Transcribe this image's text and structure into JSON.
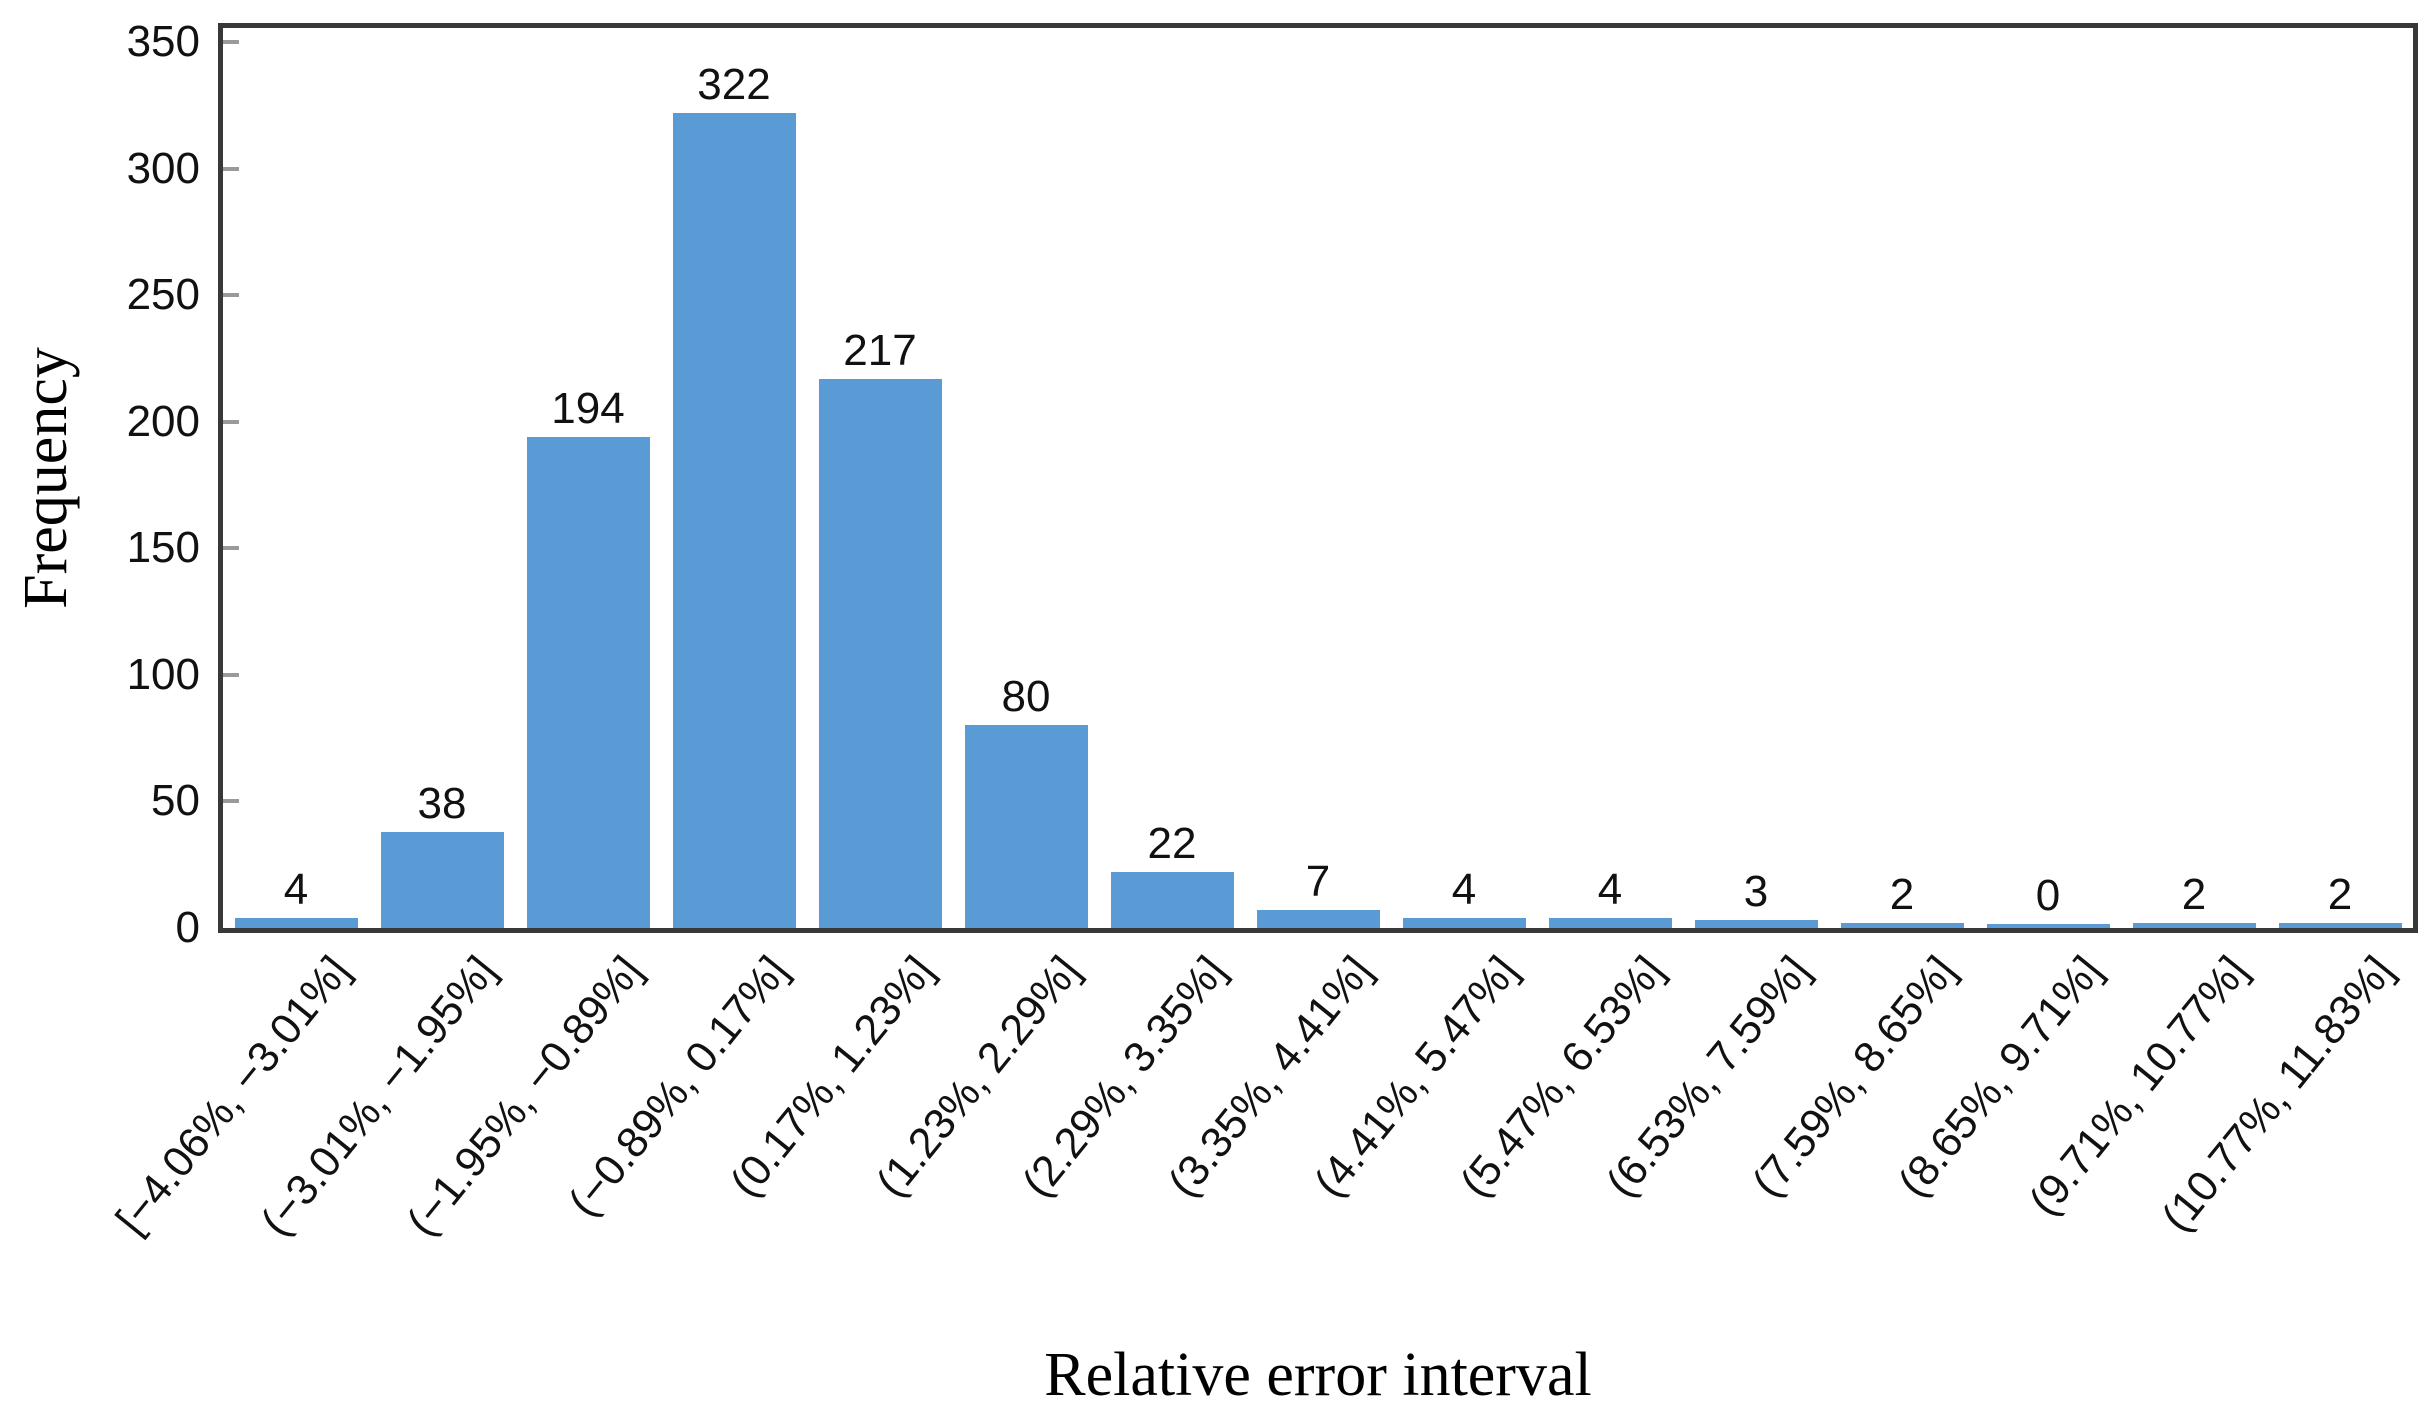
{
  "figure": {
    "background": "#ffffff"
  },
  "chart_data": {
    "type": "bar",
    "title": "",
    "xlabel": "Relative error interval",
    "ylabel": "Frequency",
    "categories": [
      "[−4.06%, −3.01%]",
      "(−3.01%, −1.95%]",
      "(−1.95%, −0.89%]",
      "(−0.89%, 0.17%]",
      "(0.17%, 1.23%]",
      "(1.23%, 2.29%]",
      "(2.29%, 3.35%]",
      "(3.35%, 4.41%]",
      "(4.41%, 5.47%]",
      "(5.47%, 6.53%]",
      "(6.53%, 7.59%]",
      "(7.59%, 8.65%]",
      "(8.65%, 9.71%]",
      "(9.71%, 10.77%]",
      "(10.77%, 11.83%]"
    ],
    "values": [
      4,
      38,
      194,
      322,
      217,
      80,
      22,
      7,
      4,
      4,
      3,
      2,
      0,
      2,
      2
    ],
    "yticks": [
      0,
      50,
      100,
      150,
      200,
      250,
      300,
      350
    ],
    "ylim": [
      0,
      356
    ],
    "grid": "off",
    "legend": "none",
    "bar_color": "#5B9BD5",
    "axis_color": "#383838",
    "tick_mark_color": "#9a9a9a",
    "text_color": "#111111"
  }
}
